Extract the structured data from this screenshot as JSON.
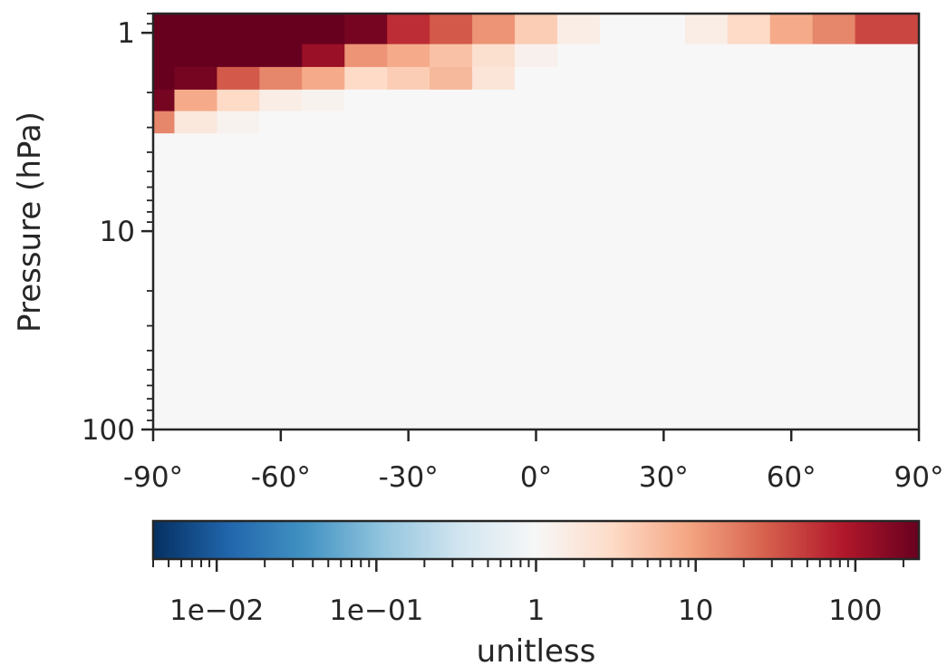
{
  "chart_data": [
    {
      "type": "heatmap",
      "title": "",
      "xlabel": "",
      "ylabel": "Pressure (hPa)",
      "x_range": [
        -90,
        90
      ],
      "x_ticks": [
        -90,
        -60,
        -30,
        0,
        30,
        60,
        90
      ],
      "x_tick_labels": [
        "-90°",
        "-60°",
        "-30°",
        "0°",
        "30°",
        "60°",
        "90°"
      ],
      "y_scale": "log",
      "y_inverted": true,
      "y_range": [
        0.8,
        100
      ],
      "y_ticks": [
        1,
        10,
        100
      ],
      "y_tick_labels": [
        "1",
        "10",
        "100"
      ],
      "y_levels_hPa": [
        1,
        1.3,
        1.7,
        2.2,
        2.8
      ],
      "latitudes": [
        -90,
        -80,
        -70,
        -60,
        -50,
        -40,
        -30,
        -20,
        -10,
        0,
        10,
        20,
        30,
        40,
        50,
        60,
        70,
        80,
        90
      ],
      "values": [
        [
          300,
          300,
          300,
          300,
          300,
          200,
          60,
          30,
          12,
          4,
          1.5,
          1,
          1,
          1.5,
          3,
          8,
          15,
          40,
          40
        ],
        [
          300,
          300,
          300,
          300,
          120,
          12,
          8,
          5,
          2.5,
          1.3,
          1,
          1,
          1,
          1,
          1,
          1,
          1,
          1,
          1
        ],
        [
          300,
          200,
          30,
          15,
          8,
          3,
          4,
          6,
          2,
          1,
          1,
          1,
          1,
          1,
          1,
          1,
          1,
          1,
          1
        ],
        [
          200,
          8,
          3,
          1.5,
          1.2,
          1,
          1,
          1,
          1,
          1,
          1,
          1,
          1,
          1,
          1,
          1,
          1,
          1,
          1
        ],
        [
          15,
          1.8,
          1.2,
          1,
          1,
          1,
          1,
          1,
          1,
          1,
          1,
          1,
          1,
          1,
          1,
          1,
          1,
          1,
          1
        ]
      ],
      "background_value": 1,
      "colormap": "RdBu_r",
      "colorbar": {
        "scale": "log",
        "range": [
          0.004,
          250
        ],
        "tick_values": [
          0.01,
          0.1,
          1,
          10,
          100
        ],
        "tick_labels": [
          "1e−02",
          "1e−01",
          "1",
          "10",
          "100"
        ],
        "label": "unitless",
        "orientation": "horizontal"
      },
      "grid": false
    }
  ],
  "colors": {
    "cmap_stops": [
      "#053061",
      "#2166ac",
      "#4393c3",
      "#92c5de",
      "#d1e5f0",
      "#f7f7f7",
      "#fddbc7",
      "#f4a582",
      "#d6604d",
      "#b2182b",
      "#67001f"
    ],
    "background": "#f7f7f7",
    "frame": "#262626"
  }
}
